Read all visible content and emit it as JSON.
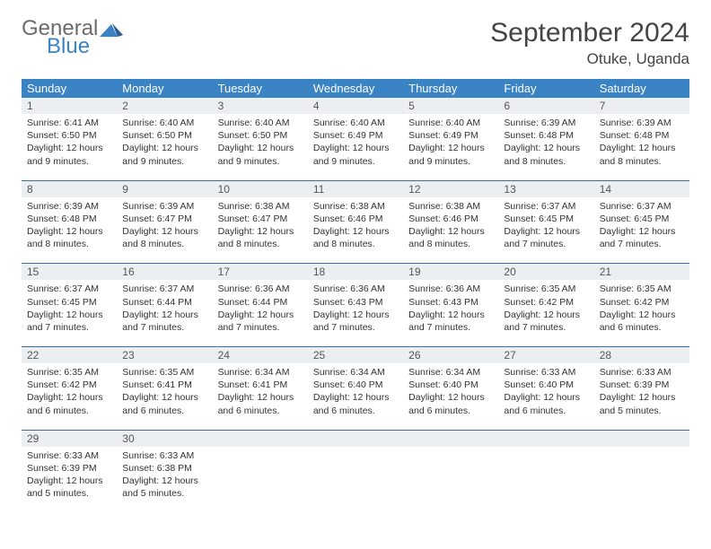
{
  "logo": {
    "line1": "General",
    "line2": "Blue"
  },
  "title": "September 2024",
  "location": "Otuke, Uganda",
  "colors": {
    "header_bg": "#3a83c5",
    "daynum_bg": "#eceff1",
    "divider": "#3a6ea5",
    "text": "#333333",
    "title_text": "#444444"
  },
  "weekdays": [
    "Sunday",
    "Monday",
    "Tuesday",
    "Wednesday",
    "Thursday",
    "Friday",
    "Saturday"
  ],
  "weeks": [
    {
      "nums": [
        "1",
        "2",
        "3",
        "4",
        "5",
        "6",
        "7"
      ],
      "cells": [
        {
          "sunrise": "Sunrise: 6:41 AM",
          "sunset": "Sunset: 6:50 PM",
          "daylight": "Daylight: 12 hours and 9 minutes."
        },
        {
          "sunrise": "Sunrise: 6:40 AM",
          "sunset": "Sunset: 6:50 PM",
          "daylight": "Daylight: 12 hours and 9 minutes."
        },
        {
          "sunrise": "Sunrise: 6:40 AM",
          "sunset": "Sunset: 6:50 PM",
          "daylight": "Daylight: 12 hours and 9 minutes."
        },
        {
          "sunrise": "Sunrise: 6:40 AM",
          "sunset": "Sunset: 6:49 PM",
          "daylight": "Daylight: 12 hours and 9 minutes."
        },
        {
          "sunrise": "Sunrise: 6:40 AM",
          "sunset": "Sunset: 6:49 PM",
          "daylight": "Daylight: 12 hours and 9 minutes."
        },
        {
          "sunrise": "Sunrise: 6:39 AM",
          "sunset": "Sunset: 6:48 PM",
          "daylight": "Daylight: 12 hours and 8 minutes."
        },
        {
          "sunrise": "Sunrise: 6:39 AM",
          "sunset": "Sunset: 6:48 PM",
          "daylight": "Daylight: 12 hours and 8 minutes."
        }
      ]
    },
    {
      "nums": [
        "8",
        "9",
        "10",
        "11",
        "12",
        "13",
        "14"
      ],
      "cells": [
        {
          "sunrise": "Sunrise: 6:39 AM",
          "sunset": "Sunset: 6:48 PM",
          "daylight": "Daylight: 12 hours and 8 minutes."
        },
        {
          "sunrise": "Sunrise: 6:39 AM",
          "sunset": "Sunset: 6:47 PM",
          "daylight": "Daylight: 12 hours and 8 minutes."
        },
        {
          "sunrise": "Sunrise: 6:38 AM",
          "sunset": "Sunset: 6:47 PM",
          "daylight": "Daylight: 12 hours and 8 minutes."
        },
        {
          "sunrise": "Sunrise: 6:38 AM",
          "sunset": "Sunset: 6:46 PM",
          "daylight": "Daylight: 12 hours and 8 minutes."
        },
        {
          "sunrise": "Sunrise: 6:38 AM",
          "sunset": "Sunset: 6:46 PM",
          "daylight": "Daylight: 12 hours and 8 minutes."
        },
        {
          "sunrise": "Sunrise: 6:37 AM",
          "sunset": "Sunset: 6:45 PM",
          "daylight": "Daylight: 12 hours and 7 minutes."
        },
        {
          "sunrise": "Sunrise: 6:37 AM",
          "sunset": "Sunset: 6:45 PM",
          "daylight": "Daylight: 12 hours and 7 minutes."
        }
      ]
    },
    {
      "nums": [
        "15",
        "16",
        "17",
        "18",
        "19",
        "20",
        "21"
      ],
      "cells": [
        {
          "sunrise": "Sunrise: 6:37 AM",
          "sunset": "Sunset: 6:45 PM",
          "daylight": "Daylight: 12 hours and 7 minutes."
        },
        {
          "sunrise": "Sunrise: 6:37 AM",
          "sunset": "Sunset: 6:44 PM",
          "daylight": "Daylight: 12 hours and 7 minutes."
        },
        {
          "sunrise": "Sunrise: 6:36 AM",
          "sunset": "Sunset: 6:44 PM",
          "daylight": "Daylight: 12 hours and 7 minutes."
        },
        {
          "sunrise": "Sunrise: 6:36 AM",
          "sunset": "Sunset: 6:43 PM",
          "daylight": "Daylight: 12 hours and 7 minutes."
        },
        {
          "sunrise": "Sunrise: 6:36 AM",
          "sunset": "Sunset: 6:43 PM",
          "daylight": "Daylight: 12 hours and 7 minutes."
        },
        {
          "sunrise": "Sunrise: 6:35 AM",
          "sunset": "Sunset: 6:42 PM",
          "daylight": "Daylight: 12 hours and 7 minutes."
        },
        {
          "sunrise": "Sunrise: 6:35 AM",
          "sunset": "Sunset: 6:42 PM",
          "daylight": "Daylight: 12 hours and 6 minutes."
        }
      ]
    },
    {
      "nums": [
        "22",
        "23",
        "24",
        "25",
        "26",
        "27",
        "28"
      ],
      "cells": [
        {
          "sunrise": "Sunrise: 6:35 AM",
          "sunset": "Sunset: 6:42 PM",
          "daylight": "Daylight: 12 hours and 6 minutes."
        },
        {
          "sunrise": "Sunrise: 6:35 AM",
          "sunset": "Sunset: 6:41 PM",
          "daylight": "Daylight: 12 hours and 6 minutes."
        },
        {
          "sunrise": "Sunrise: 6:34 AM",
          "sunset": "Sunset: 6:41 PM",
          "daylight": "Daylight: 12 hours and 6 minutes."
        },
        {
          "sunrise": "Sunrise: 6:34 AM",
          "sunset": "Sunset: 6:40 PM",
          "daylight": "Daylight: 12 hours and 6 minutes."
        },
        {
          "sunrise": "Sunrise: 6:34 AM",
          "sunset": "Sunset: 6:40 PM",
          "daylight": "Daylight: 12 hours and 6 minutes."
        },
        {
          "sunrise": "Sunrise: 6:33 AM",
          "sunset": "Sunset: 6:40 PM",
          "daylight": "Daylight: 12 hours and 6 minutes."
        },
        {
          "sunrise": "Sunrise: 6:33 AM",
          "sunset": "Sunset: 6:39 PM",
          "daylight": "Daylight: 12 hours and 5 minutes."
        }
      ]
    },
    {
      "nums": [
        "29",
        "30",
        "",
        "",
        "",
        "",
        ""
      ],
      "cells": [
        {
          "sunrise": "Sunrise: 6:33 AM",
          "sunset": "Sunset: 6:39 PM",
          "daylight": "Daylight: 12 hours and 5 minutes."
        },
        {
          "sunrise": "Sunrise: 6:33 AM",
          "sunset": "Sunset: 6:38 PM",
          "daylight": "Daylight: 12 hours and 5 minutes."
        },
        null,
        null,
        null,
        null,
        null
      ]
    }
  ]
}
